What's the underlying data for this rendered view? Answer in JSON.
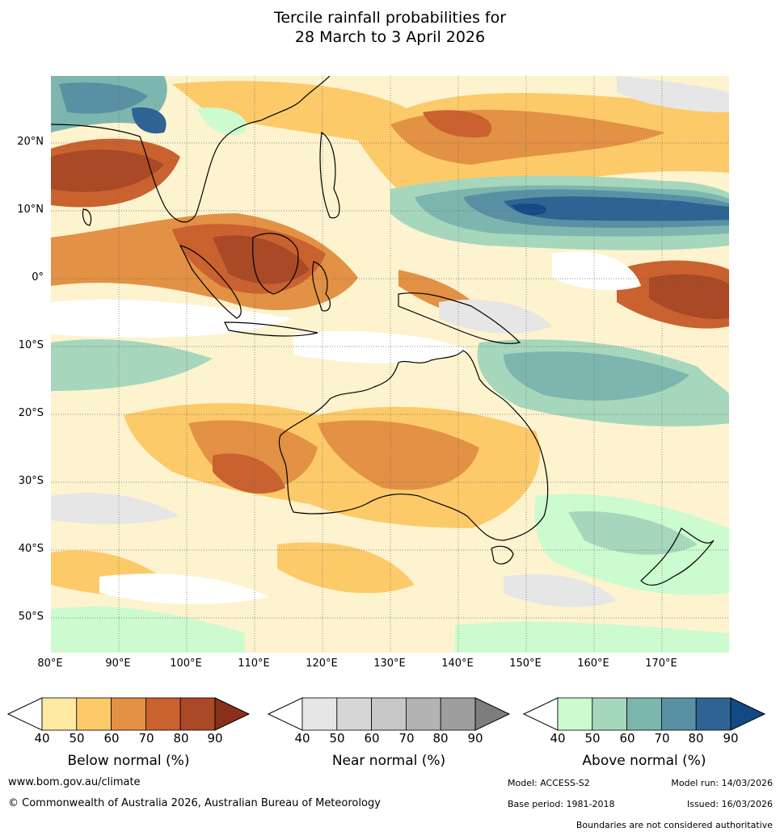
{
  "title": {
    "line1": "Tercile rainfall probabilities for",
    "line2": "28 March to 3 April 2026"
  },
  "map": {
    "lat_labels": [
      "20°N",
      "10°N",
      "0°",
      "10°S",
      "20°S",
      "30°S",
      "40°S",
      "50°S"
    ],
    "lon_labels": [
      "80°E",
      "90°E",
      "100°E",
      "110°E",
      "120°E",
      "130°E",
      "140°E",
      "150°E",
      "160°E",
      "170°E"
    ],
    "region": "Indian Ocean, Maritime Continent, Australia and SW Pacific",
    "gridlines": true
  },
  "colorbars": [
    {
      "label": "Below normal (%)",
      "ticks": [
        "40",
        "50",
        "60",
        "70",
        "80",
        "90"
      ],
      "colors": [
        "#ffffff",
        "#ffeaa3",
        "#fdca6a",
        "#e39144",
        "#c9622f",
        "#a94925",
        "#8a2f1c"
      ]
    },
    {
      "label": "Near normal (%)",
      "ticks": [
        "40",
        "50",
        "60",
        "70",
        "80",
        "90"
      ],
      "colors": [
        "#ffffff",
        "#e6e6e6",
        "#d6d6d6",
        "#c7c7c7",
        "#b3b3b3",
        "#9e9e9e",
        "#7d7d7d"
      ]
    },
    {
      "label": "Above normal (%)",
      "ticks": [
        "40",
        "50",
        "60",
        "70",
        "80",
        "90"
      ],
      "colors": [
        "#ffffff",
        "#ccfbcf",
        "#a6d7bd",
        "#7db6ae",
        "#5a90a3",
        "#2f6394",
        "#134a85"
      ]
    }
  ],
  "footer": {
    "website": "www.bom.gov.au/climate",
    "copyright": "© Commonwealth of Australia 2026, Australian Bureau of Meteorology",
    "model": "Model: ACCESS-S2",
    "model_run": "Model run: 14/03/2026",
    "base_period": "Base period: 1981-2018",
    "issued": "Issued: 16/03/2026",
    "disclaimer": "Boundaries are not considered authoritative"
  }
}
